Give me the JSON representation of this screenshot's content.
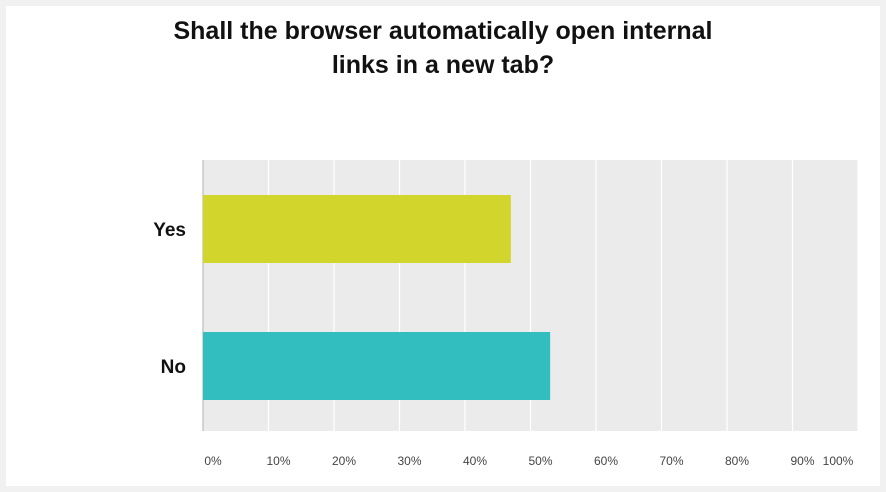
{
  "chart_data": {
    "type": "bar",
    "orientation": "horizontal",
    "title_lines": [
      "Shall the browser automatically open internal",
      "links in a new tab?"
    ],
    "categories": [
      "Yes",
      "No"
    ],
    "values": [
      47,
      53
    ],
    "xlim": [
      0,
      100
    ],
    "xticks": [
      "0%",
      "10%",
      "20%",
      "30%",
      "40%",
      "50%",
      "60%",
      "70%",
      "80%",
      "90%",
      "100%"
    ],
    "colors": [
      "#d2d52b",
      "#32bdbf"
    ],
    "grid": true
  }
}
